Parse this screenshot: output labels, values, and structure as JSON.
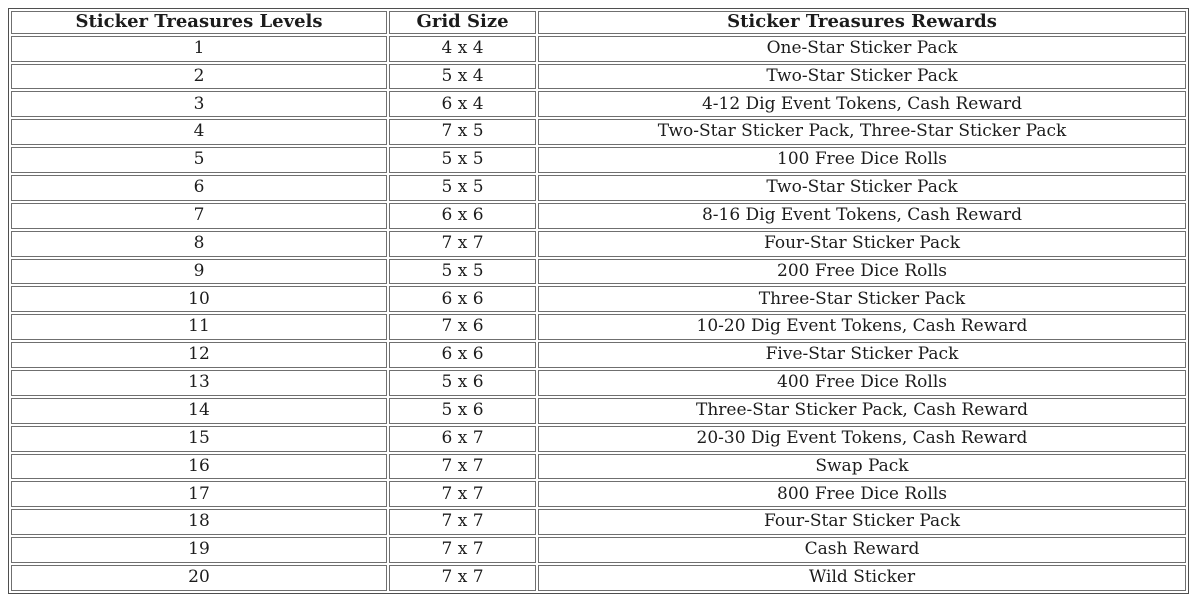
{
  "table": {
    "headers": {
      "levels": "Sticker Treasures Levels",
      "grid": "Grid Size",
      "rewards": "Sticker Treasures Rewards"
    },
    "rows": [
      {
        "level": "1",
        "grid": "4 x 4",
        "reward": "One-Star Sticker Pack"
      },
      {
        "level": "2",
        "grid": "5 x 4",
        "reward": "Two-Star Sticker Pack"
      },
      {
        "level": "3",
        "grid": "6 x 4",
        "reward": "4-12 Dig Event Tokens, Cash Reward"
      },
      {
        "level": "4",
        "grid": "7 x 5",
        "reward": "Two-Star Sticker Pack, Three-Star Sticker Pack"
      },
      {
        "level": "5",
        "grid": "5 x 5",
        "reward": "100 Free Dice Rolls"
      },
      {
        "level": "6",
        "grid": "5 x 5",
        "reward": "Two-Star Sticker Pack"
      },
      {
        "level": "7",
        "grid": "6 x 6",
        "reward": "8-16 Dig Event Tokens, Cash Reward"
      },
      {
        "level": "8",
        "grid": "7 x 7",
        "reward": "Four-Star Sticker Pack"
      },
      {
        "level": "9",
        "grid": "5 x 5",
        "reward": "200 Free Dice Rolls"
      },
      {
        "level": "10",
        "grid": "6 x 6",
        "reward": "Three-Star Sticker Pack"
      },
      {
        "level": "11",
        "grid": "7 x 6",
        "reward": "10-20 Dig Event Tokens, Cash Reward"
      },
      {
        "level": "12",
        "grid": "6 x 6",
        "reward": "Five-Star Sticker Pack"
      },
      {
        "level": "13",
        "grid": "5 x 6",
        "reward": "400 Free Dice Rolls"
      },
      {
        "level": "14",
        "grid": "5 x 6",
        "reward": "Three-Star Sticker Pack, Cash Reward"
      },
      {
        "level": "15",
        "grid": "6 x 7",
        "reward": "20-30 Dig Event Tokens, Cash Reward"
      },
      {
        "level": "16",
        "grid": "7 x 7",
        "reward": "Swap Pack"
      },
      {
        "level": "17",
        "grid": "7 x 7",
        "reward": "800 Free Dice Rolls"
      },
      {
        "level": "18",
        "grid": "7 x 7",
        "reward": "Four-Star Sticker Pack"
      },
      {
        "level": "19",
        "grid": "7 x 7",
        "reward": "Cash Reward"
      },
      {
        "level": "20",
        "grid": "7 x 7",
        "reward": "Wild Sticker"
      }
    ]
  },
  "colors": {
    "outer_border": "#4f4f4f",
    "cell_border": "#6f6f6f",
    "text": "#1c1c1c",
    "background": "#ffffff"
  }
}
